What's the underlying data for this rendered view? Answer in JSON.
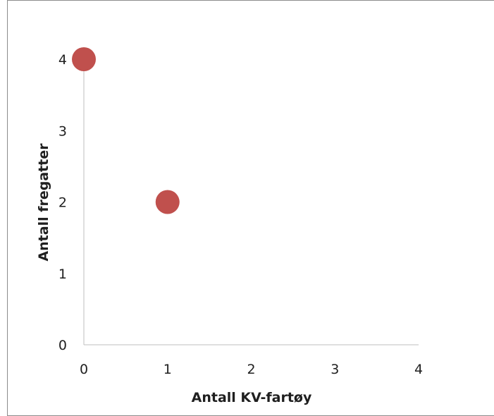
{
  "chart_data": {
    "type": "scatter",
    "title": "",
    "xlabel": "Antall KV-fartøy",
    "ylabel": "Antall fregatter",
    "xlim": [
      0,
      4
    ],
    "ylim": [
      0,
      4
    ],
    "xticks": [
      0,
      1,
      2,
      3,
      4
    ],
    "yticks": [
      0,
      1,
      2,
      3,
      4
    ],
    "grid": false,
    "legend": "none",
    "series": [
      {
        "points": [
          {
            "x": 0,
            "y": 4
          },
          {
            "x": 1,
            "y": 2
          }
        ],
        "color": "#c0504d"
      }
    ],
    "axis_color": "#bfbfbf"
  }
}
